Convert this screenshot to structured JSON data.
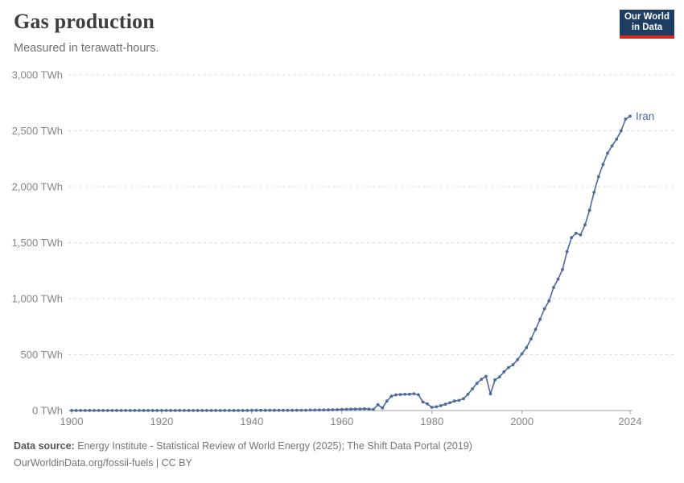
{
  "header": {
    "title": "Gas production",
    "subtitle": "Measured in terawatt-hours."
  },
  "logo": {
    "line1": "Our World",
    "line2": "in Data",
    "bg_color": "#1d3d63",
    "accent_color": "#d8281c",
    "text_color": "#ffffff"
  },
  "footer": {
    "source_label": "Data source:",
    "source_text": " Energy Institute - Statistical Review of World Energy (2025); The Shift Data Portal (2019)",
    "attribution": "OurWorldinData.org/fossil-fuels | CC BY"
  },
  "chart_data": {
    "type": "line",
    "title": "Gas production",
    "subtitle": "Measured in terawatt-hours.",
    "unit": "TWh",
    "grid": "horizontal-dashed",
    "legend_position": "line-end-label",
    "line_color": "#4C6A9C",
    "marker": "dot",
    "xlim": [
      1900,
      2024
    ],
    "ylim": [
      0,
      3000
    ],
    "x_ticks": [
      {
        "value": 1900,
        "label": "1900"
      },
      {
        "value": 1920,
        "label": "1920"
      },
      {
        "value": 1940,
        "label": "1940"
      },
      {
        "value": 1960,
        "label": "1960"
      },
      {
        "value": 1980,
        "label": "1980"
      },
      {
        "value": 2000,
        "label": "2000"
      },
      {
        "value": 2024,
        "label": "2024"
      }
    ],
    "y_ticks": [
      {
        "value": 0,
        "label": "0 TWh"
      },
      {
        "value": 500,
        "label": "500 TWh"
      },
      {
        "value": 1000,
        "label": "1,000 TWh"
      },
      {
        "value": 1500,
        "label": "1,500 TWh"
      },
      {
        "value": 2000,
        "label": "2,000 TWh"
      },
      {
        "value": 2500,
        "label": "2,500 TWh"
      },
      {
        "value": 3000,
        "label": "3,000 TWh"
      }
    ],
    "series": [
      {
        "name": "Iran",
        "end_label": "Iran",
        "color": "#4C6A9C",
        "points": [
          [
            1900,
            1
          ],
          [
            1901,
            1
          ],
          [
            1902,
            1
          ],
          [
            1903,
            1
          ],
          [
            1904,
            1
          ],
          [
            1905,
            1
          ],
          [
            1906,
            1
          ],
          [
            1907,
            1
          ],
          [
            1908,
            1
          ],
          [
            1909,
            1
          ],
          [
            1910,
            1
          ],
          [
            1911,
            1
          ],
          [
            1912,
            1
          ],
          [
            1913,
            1
          ],
          [
            1914,
            1
          ],
          [
            1915,
            1
          ],
          [
            1916,
            1
          ],
          [
            1917,
            1
          ],
          [
            1918,
            1
          ],
          [
            1919,
            1
          ],
          [
            1920,
            1
          ],
          [
            1921,
            1
          ],
          [
            1922,
            1
          ],
          [
            1923,
            1
          ],
          [
            1924,
            1
          ],
          [
            1925,
            1
          ],
          [
            1926,
            1
          ],
          [
            1927,
            1
          ],
          [
            1928,
            1
          ],
          [
            1929,
            1
          ],
          [
            1930,
            1
          ],
          [
            1931,
            1
          ],
          [
            1932,
            1
          ],
          [
            1933,
            1
          ],
          [
            1934,
            1
          ],
          [
            1935,
            1
          ],
          [
            1936,
            1
          ],
          [
            1937,
            1
          ],
          [
            1938,
            1
          ],
          [
            1939,
            1
          ],
          [
            1940,
            2
          ],
          [
            1941,
            2
          ],
          [
            1942,
            2
          ],
          [
            1943,
            2
          ],
          [
            1944,
            2
          ],
          [
            1945,
            2
          ],
          [
            1946,
            2
          ],
          [
            1947,
            2
          ],
          [
            1948,
            2
          ],
          [
            1949,
            2
          ],
          [
            1950,
            3
          ],
          [
            1951,
            3
          ],
          [
            1952,
            3
          ],
          [
            1953,
            4
          ],
          [
            1954,
            4
          ],
          [
            1955,
            5
          ],
          [
            1956,
            5
          ],
          [
            1957,
            6
          ],
          [
            1958,
            7
          ],
          [
            1959,
            8
          ],
          [
            1960,
            10
          ],
          [
            1961,
            11
          ],
          [
            1962,
            12
          ],
          [
            1963,
            13
          ],
          [
            1964,
            14
          ],
          [
            1965,
            15
          ],
          [
            1966,
            13
          ],
          [
            1967,
            10
          ],
          [
            1968,
            52
          ],
          [
            1969,
            23
          ],
          [
            1970,
            85
          ],
          [
            1971,
            128
          ],
          [
            1972,
            140
          ],
          [
            1973,
            143
          ],
          [
            1974,
            145
          ],
          [
            1975,
            146
          ],
          [
            1976,
            150
          ],
          [
            1977,
            141
          ],
          [
            1978,
            77
          ],
          [
            1979,
            60
          ],
          [
            1980,
            29
          ],
          [
            1981,
            34
          ],
          [
            1982,
            44
          ],
          [
            1983,
            56
          ],
          [
            1984,
            70
          ],
          [
            1985,
            85
          ],
          [
            1986,
            91
          ],
          [
            1987,
            106
          ],
          [
            1988,
            145
          ],
          [
            1989,
            194
          ],
          [
            1990,
            243
          ],
          [
            1991,
            280
          ],
          [
            1992,
            306
          ],
          [
            1993,
            149
          ],
          [
            1994,
            274
          ],
          [
            1995,
            300
          ],
          [
            1996,
            346
          ],
          [
            1997,
            384
          ],
          [
            1998,
            409
          ],
          [
            1999,
            455
          ],
          [
            2000,
            508
          ],
          [
            2001,
            563
          ],
          [
            2002,
            640
          ],
          [
            2003,
            725
          ],
          [
            2004,
            815
          ],
          [
            2005,
            910
          ],
          [
            2006,
            980
          ],
          [
            2007,
            1100
          ],
          [
            2008,
            1175
          ],
          [
            2009,
            1260
          ],
          [
            2010,
            1420
          ],
          [
            2011,
            1545
          ],
          [
            2012,
            1585
          ],
          [
            2013,
            1570
          ],
          [
            2014,
            1660
          ],
          [
            2015,
            1790
          ],
          [
            2016,
            1950
          ],
          [
            2017,
            2090
          ],
          [
            2018,
            2200
          ],
          [
            2019,
            2300
          ],
          [
            2020,
            2365
          ],
          [
            2021,
            2425
          ],
          [
            2022,
            2500
          ],
          [
            2023,
            2605
          ],
          [
            2024,
            2630
          ]
        ]
      }
    ]
  }
}
